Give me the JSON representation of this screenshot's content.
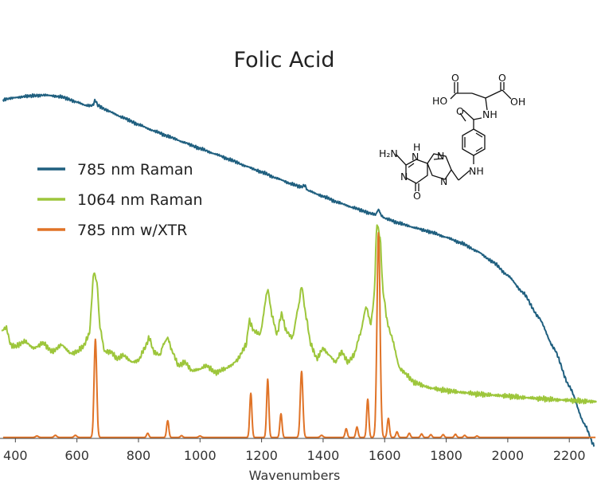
{
  "chart_data": {
    "type": "line",
    "title": "Folic Acid",
    "xlabel": "Wavenumbers",
    "ylabel": "",
    "xlim": [
      350,
      2290
    ],
    "ylim": [
      0,
      1
    ],
    "x_ticks": [
      400,
      600,
      800,
      1000,
      1200,
      1400,
      1600,
      1800,
      2000,
      2200
    ],
    "grid": false,
    "legend_position": "left",
    "series": [
      {
        "name": "785 nm Raman",
        "color": "#1f5f7f",
        "points": [
          [
            360,
            0.977
          ],
          [
            400,
            0.983
          ],
          [
            450,
            0.988
          ],
          [
            500,
            0.99
          ],
          [
            550,
            0.985
          ],
          [
            600,
            0.97
          ],
          [
            630,
            0.96
          ],
          [
            650,
            0.96
          ],
          [
            660,
            0.975
          ],
          [
            668,
            0.96
          ],
          [
            700,
            0.945
          ],
          [
            750,
            0.925
          ],
          [
            800,
            0.905
          ],
          [
            850,
            0.887
          ],
          [
            900,
            0.87
          ],
          [
            950,
            0.853
          ],
          [
            1000,
            0.836
          ],
          [
            1050,
            0.82
          ],
          [
            1100,
            0.803
          ],
          [
            1150,
            0.785
          ],
          [
            1200,
            0.768
          ],
          [
            1250,
            0.75
          ],
          [
            1300,
            0.733
          ],
          [
            1330,
            0.725
          ],
          [
            1340,
            0.73
          ],
          [
            1350,
            0.715
          ],
          [
            1400,
            0.698
          ],
          [
            1450,
            0.68
          ],
          [
            1500,
            0.665
          ],
          [
            1550,
            0.65
          ],
          [
            1570,
            0.645
          ],
          [
            1580,
            0.66
          ],
          [
            1590,
            0.642
          ],
          [
            1600,
            0.635
          ],
          [
            1650,
            0.62
          ],
          [
            1700,
            0.607
          ],
          [
            1750,
            0.595
          ],
          [
            1800,
            0.58
          ],
          [
            1850,
            0.563
          ],
          [
            1900,
            0.54
          ],
          [
            1950,
            0.51
          ],
          [
            2000,
            0.47
          ],
          [
            2050,
            0.42
          ],
          [
            2100,
            0.35
          ],
          [
            2150,
            0.26
          ],
          [
            2200,
            0.15
          ],
          [
            2250,
            0.04
          ],
          [
            2280,
            -0.02
          ]
        ]
      },
      {
        "name": "1064 nm Raman",
        "color": "#9dc63b",
        "points": [
          [
            355,
            0.31
          ],
          [
            370,
            0.32
          ],
          [
            385,
            0.27
          ],
          [
            400,
            0.265
          ],
          [
            430,
            0.28
          ],
          [
            460,
            0.26
          ],
          [
            490,
            0.275
          ],
          [
            520,
            0.25
          ],
          [
            550,
            0.27
          ],
          [
            580,
            0.245
          ],
          [
            600,
            0.25
          ],
          [
            620,
            0.265
          ],
          [
            640,
            0.3
          ],
          [
            655,
            0.48
          ],
          [
            665,
            0.45
          ],
          [
            675,
            0.32
          ],
          [
            690,
            0.25
          ],
          [
            710,
            0.25
          ],
          [
            730,
            0.23
          ],
          [
            750,
            0.24
          ],
          [
            780,
            0.22
          ],
          [
            800,
            0.225
          ],
          [
            820,
            0.26
          ],
          [
            835,
            0.29
          ],
          [
            850,
            0.25
          ],
          [
            870,
            0.24
          ],
          [
            880,
            0.27
          ],
          [
            895,
            0.29
          ],
          [
            910,
            0.25
          ],
          [
            930,
            0.21
          ],
          [
            950,
            0.22
          ],
          [
            975,
            0.195
          ],
          [
            1000,
            0.2
          ],
          [
            1020,
            0.21
          ],
          [
            1050,
            0.19
          ],
          [
            1080,
            0.2
          ],
          [
            1100,
            0.21
          ],
          [
            1120,
            0.225
          ],
          [
            1150,
            0.27
          ],
          [
            1160,
            0.34
          ],
          [
            1175,
            0.31
          ],
          [
            1195,
            0.3
          ],
          [
            1220,
            0.43
          ],
          [
            1235,
            0.35
          ],
          [
            1250,
            0.3
          ],
          [
            1265,
            0.36
          ],
          [
            1280,
            0.31
          ],
          [
            1300,
            0.29
          ],
          [
            1320,
            0.38
          ],
          [
            1330,
            0.44
          ],
          [
            1345,
            0.35
          ],
          [
            1360,
            0.27
          ],
          [
            1380,
            0.23
          ],
          [
            1400,
            0.26
          ],
          [
            1420,
            0.24
          ],
          [
            1440,
            0.22
          ],
          [
            1460,
            0.25
          ],
          [
            1480,
            0.22
          ],
          [
            1500,
            0.24
          ],
          [
            1520,
            0.3
          ],
          [
            1540,
            0.38
          ],
          [
            1555,
            0.33
          ],
          [
            1565,
            0.4
          ],
          [
            1575,
            0.62
          ],
          [
            1585,
            0.58
          ],
          [
            1595,
            0.42
          ],
          [
            1610,
            0.33
          ],
          [
            1620,
            0.3
          ],
          [
            1650,
            0.2
          ],
          [
            1700,
            0.16
          ],
          [
            1750,
            0.145
          ],
          [
            1800,
            0.138
          ],
          [
            1850,
            0.133
          ],
          [
            1900,
            0.128
          ],
          [
            1950,
            0.125
          ],
          [
            2000,
            0.122
          ],
          [
            2050,
            0.118
          ],
          [
            2100,
            0.115
          ],
          [
            2150,
            0.112
          ],
          [
            2200,
            0.11
          ],
          [
            2250,
            0.107
          ],
          [
            2290,
            0.106
          ]
        ]
      },
      {
        "name": "785 nm w/XTR",
        "color": "#e07327",
        "baseline": 0.003,
        "peaks": [
          [
            470,
            0.004,
            6
          ],
          [
            530,
            0.006,
            6
          ],
          [
            595,
            0.006,
            6
          ],
          [
            660,
            0.283,
            6
          ],
          [
            830,
            0.012,
            5
          ],
          [
            895,
            0.048,
            5
          ],
          [
            940,
            0.005,
            5
          ],
          [
            1000,
            0.004,
            6
          ],
          [
            1165,
            0.127,
            5
          ],
          [
            1220,
            0.168,
            5
          ],
          [
            1263,
            0.068,
            5
          ],
          [
            1330,
            0.19,
            6
          ],
          [
            1395,
            0.006,
            6
          ],
          [
            1475,
            0.025,
            5
          ],
          [
            1510,
            0.03,
            5
          ],
          [
            1545,
            0.11,
            5
          ],
          [
            1580,
            0.59,
            7
          ],
          [
            1612,
            0.055,
            5
          ],
          [
            1640,
            0.016,
            5
          ],
          [
            1680,
            0.012,
            5
          ],
          [
            1720,
            0.01,
            5
          ],
          [
            1750,
            0.008,
            5
          ],
          [
            1790,
            0.008,
            5
          ],
          [
            1830,
            0.009,
            5
          ],
          [
            1860,
            0.006,
            5
          ],
          [
            1900,
            0.004,
            5
          ]
        ]
      }
    ]
  },
  "structure_labels": [
    "HO",
    "O",
    "OH",
    "O",
    "NH",
    "O",
    "H₂N",
    "N",
    "H",
    "N",
    "N",
    "N",
    "NH",
    "O"
  ]
}
